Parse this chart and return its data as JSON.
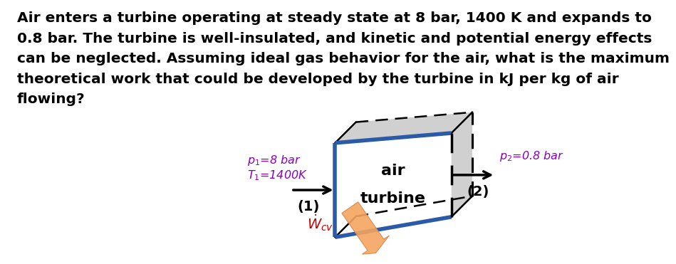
{
  "paragraph_text": "Air enters a turbine operating at steady state at 8 bar, 1400 K and expands to\n0.8 bar. The turbine is well-insulated, and kinetic and potential energy effects\ncan be neglected. Assuming ideal gas behavior for the air, what is the maximum\ntheoretical work that could be developed by the turbine in kJ per kg of air\nflowing?",
  "p1_label": "$p_1$=8 bar",
  "T1_label": "$T_1$=1400K",
  "p2_label": "$p_2$=0.8 bar",
  "label1": "(1)",
  "label2": "(2)",
  "air_label": "air",
  "turbine_label": "turbine",
  "wcv_label": "$\\dot{W}_{cv}$",
  "purple_color": "#8B00BB",
  "red_color": "#CC0000",
  "blue_color": "#2B5BA8",
  "bg_color": "#FFFFFF",
  "text_color": "#000000",
  "font_size_paragraph": 14.5,
  "font_size_labels": 11.5,
  "font_size_diagram": 14,
  "font_size_subscript": 11
}
